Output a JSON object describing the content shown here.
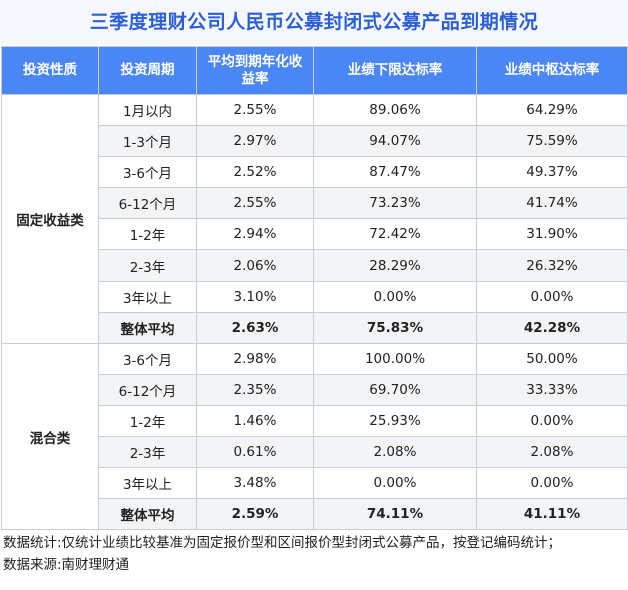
{
  "title": "三季度理财公司人民币公募封闭式公募产品到期情况",
  "headers": [
    "投资性质",
    "投资周期",
    "平均到期年化收益率",
    "业绩下限达标率",
    "业绩中枢达标率"
  ],
  "groups": [
    {
      "category": "固定收益类",
      "rows": [
        {
          "period": "1月以内",
          "yield": "2.55%",
          "lower": "89.06%",
          "mid": "64.29%"
        },
        {
          "period": "1-3个月",
          "yield": "2.97%",
          "lower": "94.07%",
          "mid": "75.59%"
        },
        {
          "period": "3-6个月",
          "yield": "2.52%",
          "lower": "87.47%",
          "mid": "49.37%"
        },
        {
          "period": "6-12个月",
          "yield": "2.55%",
          "lower": "73.23%",
          "mid": "41.74%"
        },
        {
          "period": "1-2年",
          "yield": "2.94%",
          "lower": "72.42%",
          "mid": "31.90%"
        },
        {
          "period": "2-3年",
          "yield": "2.06%",
          "lower": "28.29%",
          "mid": "26.32%"
        },
        {
          "period": "3年以上",
          "yield": "3.10%",
          "lower": "0.00%",
          "mid": "0.00%"
        },
        {
          "period": "整体平均",
          "yield": "2.63%",
          "lower": "75.83%",
          "mid": "42.28%"
        }
      ]
    },
    {
      "category": "混合类",
      "rows": [
        {
          "period": "3-6个月",
          "yield": "2.98%",
          "lower": "100.00%",
          "mid": "50.00%"
        },
        {
          "period": "6-12个月",
          "yield": "2.35%",
          "lower": "69.70%",
          "mid": "33.33%"
        },
        {
          "period": "1-2年",
          "yield": "1.46%",
          "lower": "25.93%",
          "mid": "0.00%"
        },
        {
          "period": "2-3年",
          "yield": "0.61%",
          "lower": "2.08%",
          "mid": "2.08%"
        },
        {
          "period": "3年以上",
          "yield": "3.48%",
          "lower": "0.00%",
          "mid": "0.00%"
        },
        {
          "period": "整体平均",
          "yield": "2.59%",
          "lower": "74.11%",
          "mid": "41.11%"
        }
      ]
    }
  ],
  "notes": [
    "数据统计:仅统计业绩比较基准为固定报价型和区间报价型封闭式公募产品，按登记编码统计；",
    "数据来源:南财理财通"
  ],
  "colors": {
    "title": "#2b5fd9",
    "header_bg": "#4a86f5",
    "zebra": "#f3f4f6",
    "border": "#c9cdd6"
  }
}
